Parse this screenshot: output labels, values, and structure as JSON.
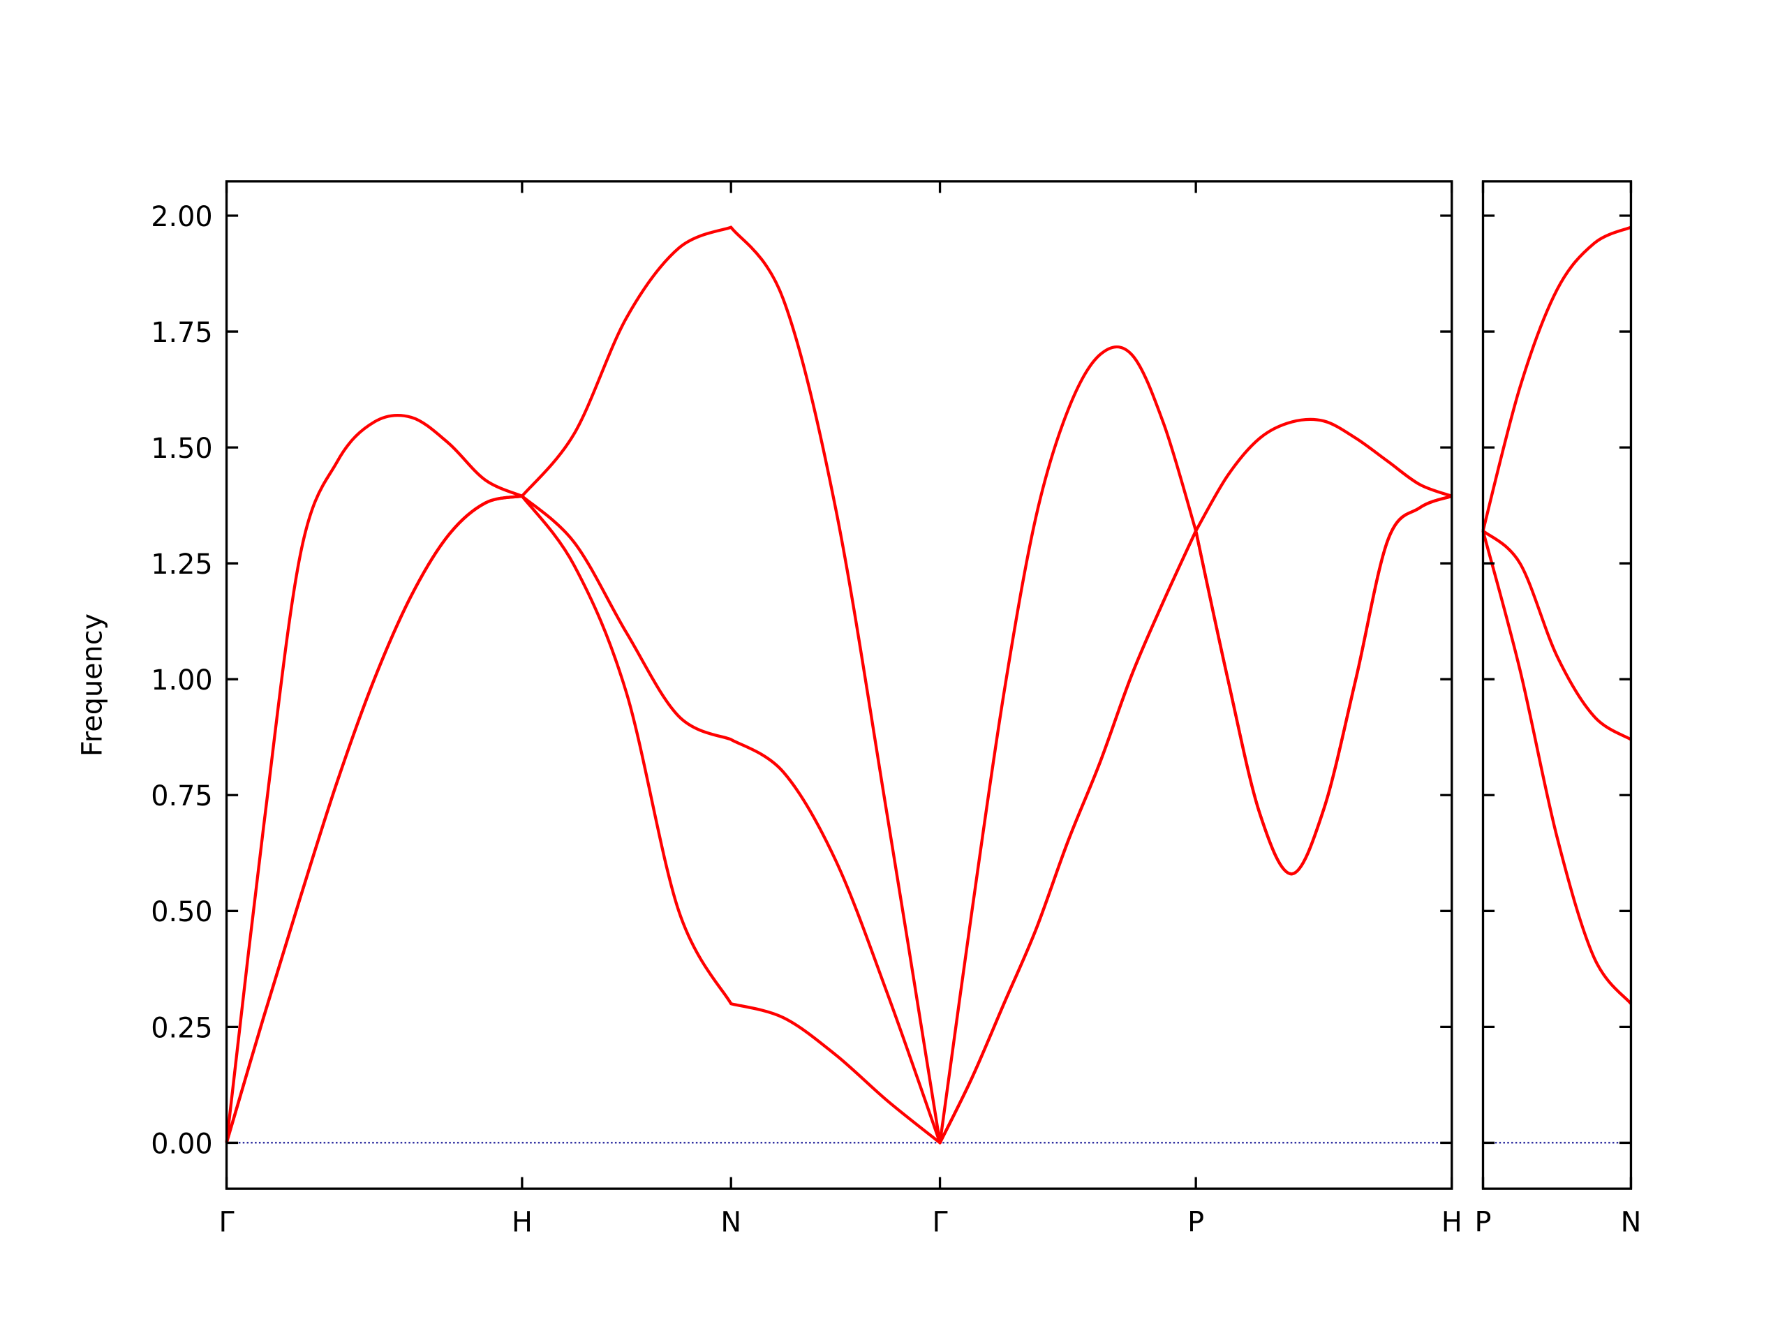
{
  "chart_data": [
    {
      "type": "line",
      "ylabel": "Frequency",
      "x": [
        0,
        0.125,
        0.25,
        0.375,
        0.5,
        0.625,
        0.75,
        0.875,
        1,
        1.1768,
        1.3536,
        1.5303,
        1.7071,
        1.8839,
        2.0607,
        2.2374,
        2.4142,
        2.5225,
        2.6307,
        2.739,
        2.8472,
        2.9555,
        3.0637,
        3.172,
        3.2802,
        3.3885,
        3.4967,
        3.605,
        3.7132,
        3.8215,
        3.9298,
        4.038,
        4.1463
      ],
      "series": [
        {
          "color": "#ff0000",
          "values": [
            0,
            0.27,
            0.53,
            0.78,
            1.0,
            1.18,
            1.31,
            1.38,
            1.395,
            1.245,
            0.97,
            0.5,
            0.3,
            0.27,
            0.19,
            0.09,
            0,
            0.14,
            0.3,
            0.46,
            0.65,
            0.82,
            1.01,
            1.17,
            1.32,
            1.0,
            0.71,
            0.58,
            0.72,
            1.0,
            1.3,
            1.37,
            1.395
          ]
        },
        {
          "color": "#ff0000",
          "values": [
            0,
            0.27,
            0.53,
            0.78,
            1.0,
            1.18,
            1.31,
            1.38,
            1.395,
            1.295,
            1.1,
            0.92,
            0.87,
            0.8,
            0.61,
            0.32,
            0,
            0.14,
            0.3,
            0.46,
            0.65,
            0.82,
            1.01,
            1.17,
            1.32,
            1.0,
            0.71,
            0.58,
            0.72,
            1.0,
            1.3,
            1.37,
            1.395
          ]
        },
        {
          "color": "#ff0000",
          "values": [
            0,
            0.68,
            1.27,
            1.47,
            1.555,
            1.565,
            1.51,
            1.43,
            1.395,
            1.53,
            1.78,
            1.93,
            1.975,
            1.82,
            1.37,
            0.7,
            0,
            0.5,
            0.97,
            1.35,
            1.58,
            1.7,
            1.7,
            1.55,
            1.32,
            1.44,
            1.52,
            1.555,
            1.557,
            1.52,
            1.47,
            1.42,
            1.395
          ]
        }
      ],
      "hlines": [
        {
          "value": 0,
          "color": "#00008b",
          "style": "dotted"
        }
      ],
      "xlim": [
        0,
        4.1463
      ],
      "ylim": [
        -0.099,
        2.074
      ],
      "xticks": [
        {
          "value": 0,
          "label": "Γ"
        },
        {
          "value": 1,
          "label": "H"
        },
        {
          "value": 1.7071,
          "label": "N"
        },
        {
          "value": 2.4142,
          "label": "Γ"
        },
        {
          "value": 3.2802,
          "label": "P"
        },
        {
          "value": 4.1463,
          "label": "H"
        }
      ],
      "yticks": [
        {
          "value": 0,
          "label": "0.00"
        },
        {
          "value": 0.25,
          "label": "0.25"
        },
        {
          "value": 0.5,
          "label": "0.50"
        },
        {
          "value": 0.75,
          "label": "0.75"
        },
        {
          "value": 1,
          "label": "1.00"
        },
        {
          "value": 1.25,
          "label": "1.25"
        },
        {
          "value": 1.5,
          "label": "1.50"
        },
        {
          "value": 1.75,
          "label": "1.75"
        },
        {
          "value": 2,
          "label": "2.00"
        }
      ],
      "ytick_labels": true
    },
    {
      "type": "line",
      "x": [
        0,
        0.125,
        0.25,
        0.375,
        0.5
      ],
      "series": [
        {
          "color": "#ff0000",
          "values": [
            1.32,
            1.02,
            0.66,
            0.4,
            0.3
          ]
        },
        {
          "color": "#ff0000",
          "values": [
            1.32,
            1.25,
            1.05,
            0.92,
            0.87
          ]
        },
        {
          "color": "#ff0000",
          "values": [
            1.32,
            1.63,
            1.84,
            1.94,
            1.975
          ]
        }
      ],
      "hlines": [
        {
          "value": 0,
          "color": "#00008b",
          "style": "dotted"
        }
      ],
      "xlim": [
        0,
        0.5
      ],
      "ylim": [
        -0.099,
        2.074
      ],
      "xticks": [
        {
          "value": 0,
          "label": "P"
        },
        {
          "value": 0.5,
          "label": "N"
        }
      ],
      "yticks": [
        0,
        0.25,
        0.5,
        0.75,
        1,
        1.25,
        1.5,
        1.75,
        2
      ],
      "ytick_labels": false
    }
  ]
}
